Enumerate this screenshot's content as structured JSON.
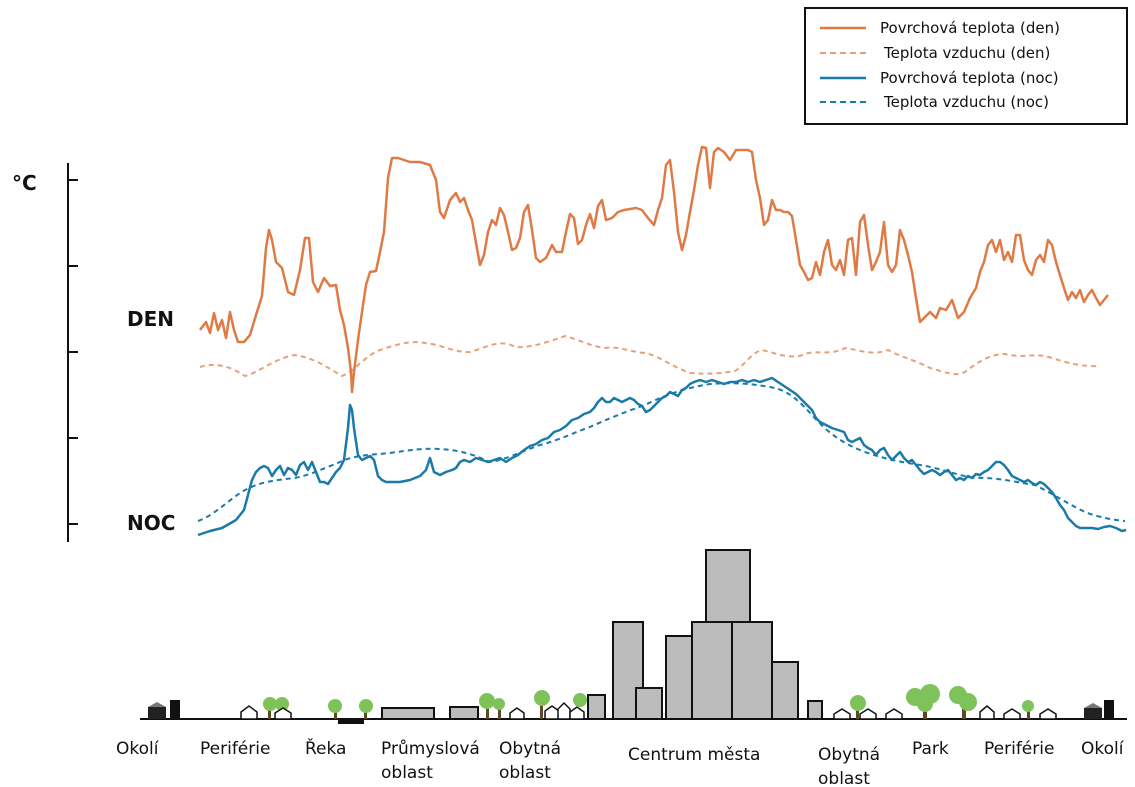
{
  "unit": "°C",
  "day_label": "DEN",
  "night_label": "NOC",
  "legend": [
    {
      "text": "Povrchová teplota (den)",
      "color": "#e07a45",
      "style": "solid"
    },
    {
      "text": "Teplota vzduchu (den)",
      "color": "#e8a07a",
      "style": "dashed"
    },
    {
      "text": "Povrchová teplota (noc)",
      "color": "#1a7aa8",
      "style": "solid"
    },
    {
      "text": "Teplota vzduchu (noc)",
      "color": "#1a7aa8",
      "style": "dashed"
    }
  ],
  "zones": [
    {
      "line1": "Okolí",
      "line2": ""
    },
    {
      "line1": "Periférie",
      "line2": ""
    },
    {
      "line1": "Řeka",
      "line2": ""
    },
    {
      "line1": "Průmyslová",
      "line2": "oblast"
    },
    {
      "line1": "Obytná",
      "line2": "oblast"
    },
    {
      "line1": "Centrum města",
      "line2": ""
    },
    {
      "line1": "Obytná",
      "line2": "oblast"
    },
    {
      "line1": "Park",
      "line2": ""
    },
    {
      "line1": "Periférie",
      "line2": ""
    },
    {
      "line1": "Okolí",
      "line2": ""
    }
  ],
  "colors": {
    "day_surface": "#e07a45",
    "day_air": "#e8a07a",
    "night_surface": "#1a7aa8",
    "night_air": "#1a7aa8",
    "building": "#bcbcbc",
    "tree": "#7dc35a"
  }
}
